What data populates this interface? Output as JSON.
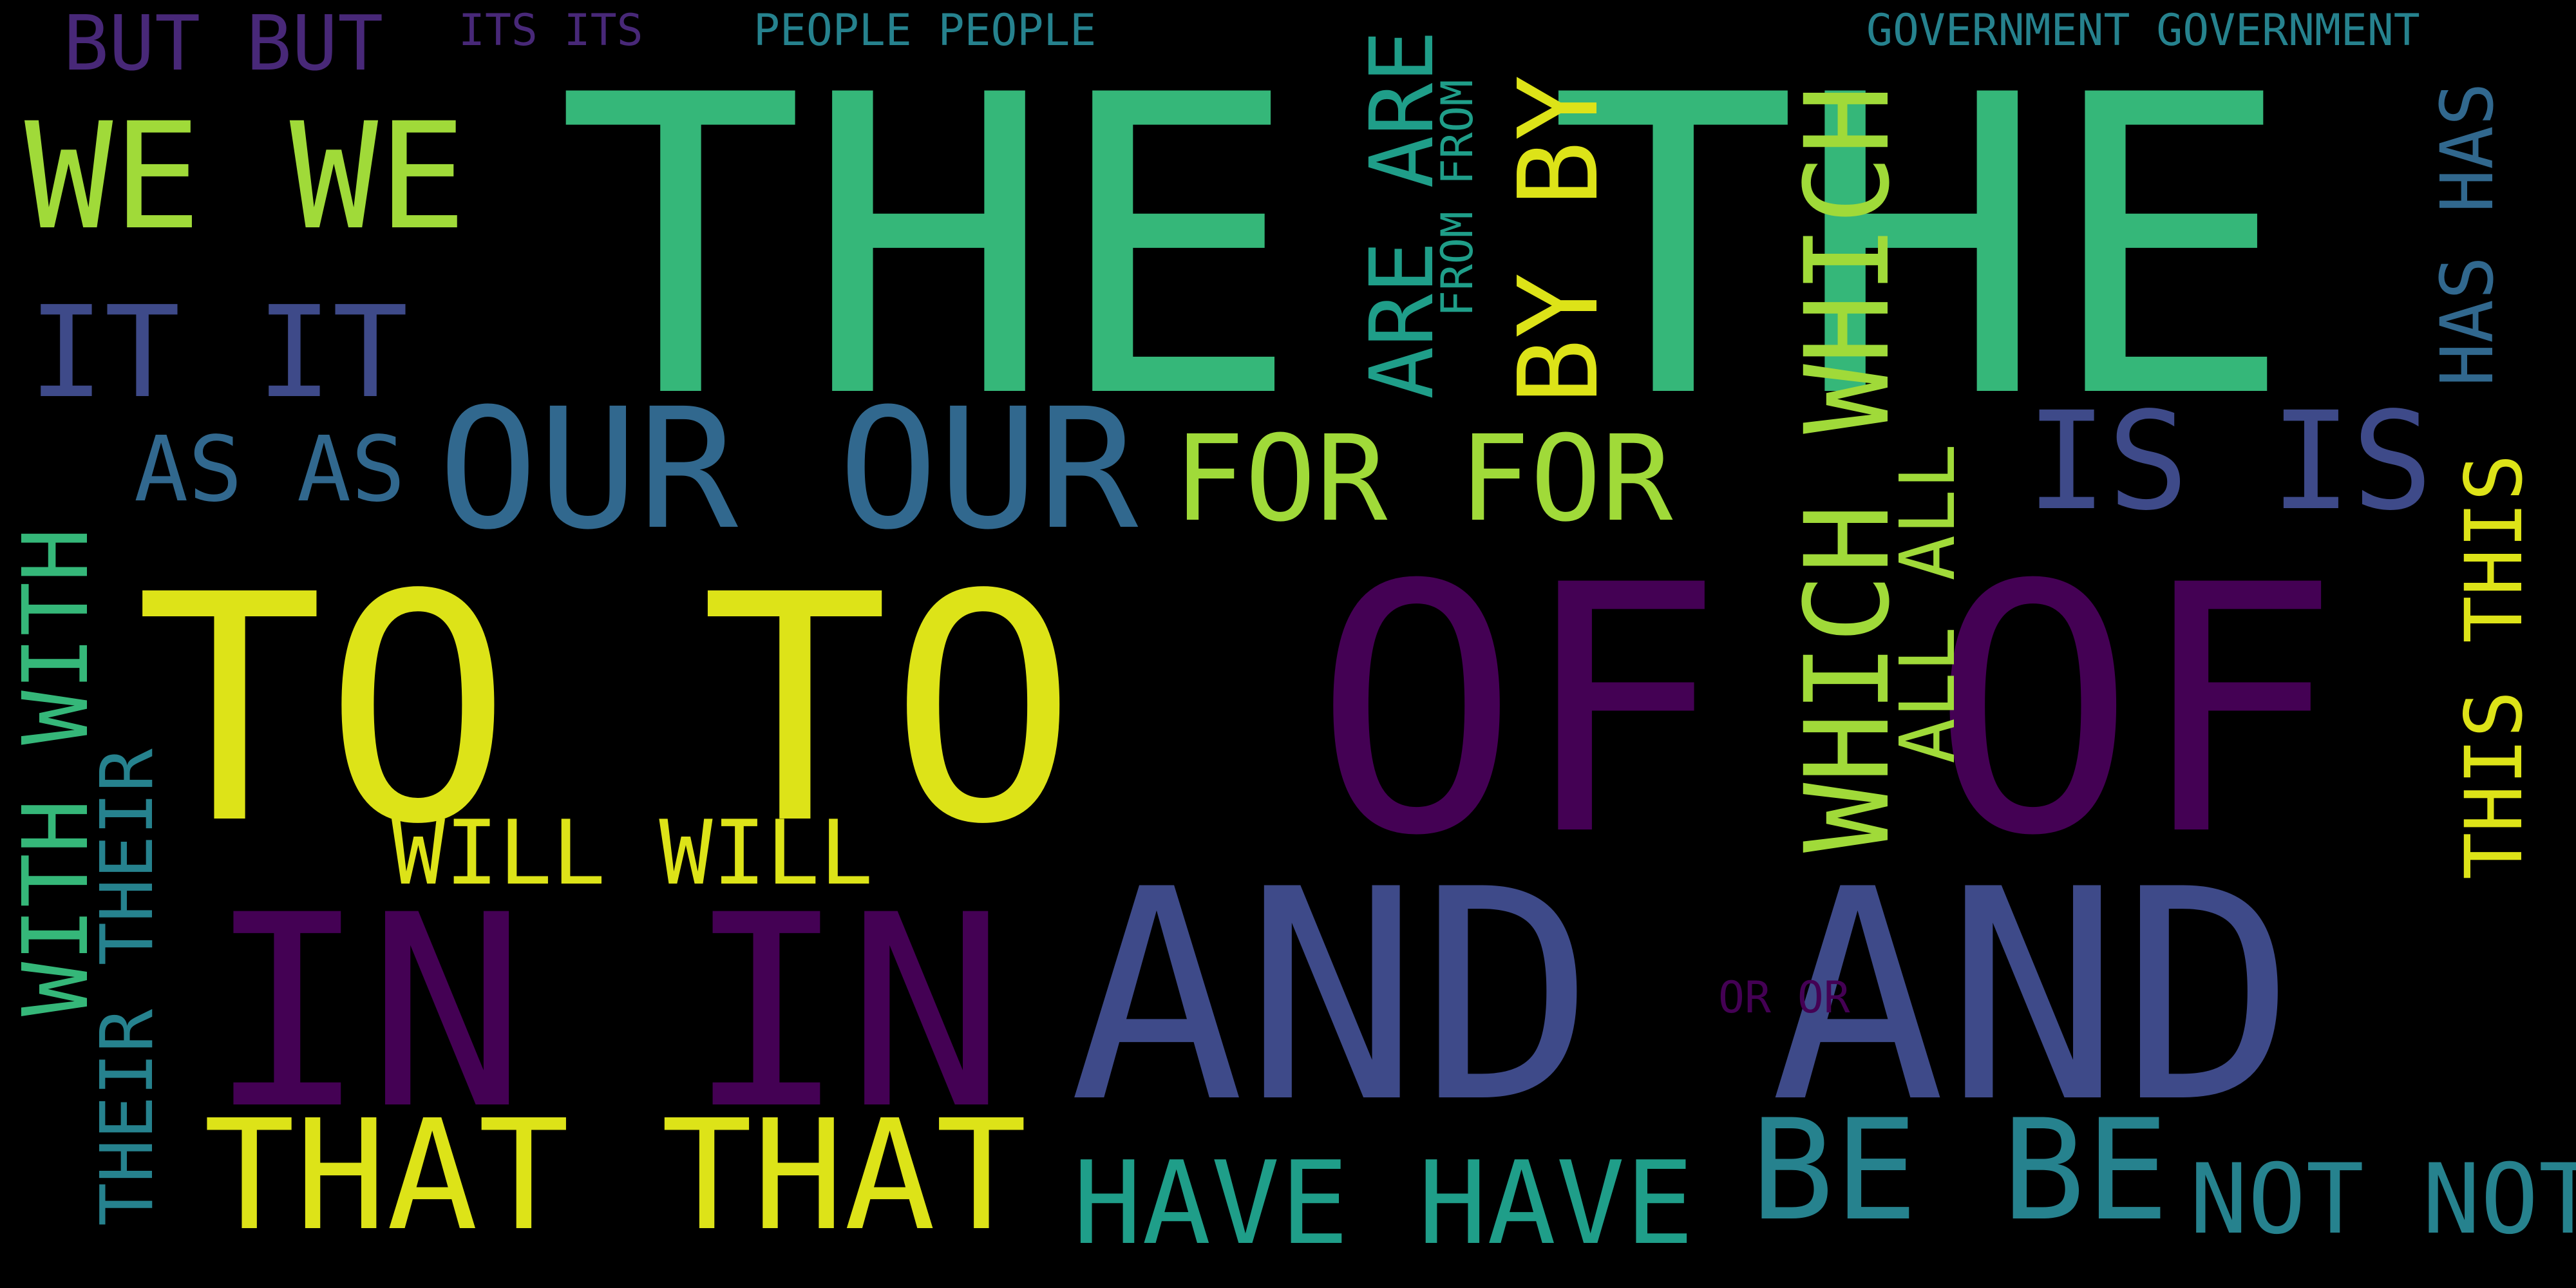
{
  "colors": {
    "background": "#000000",
    "deep_purple": "#440154",
    "purple": "#482878",
    "indigo": "#3e4a89",
    "blue": "#31688e",
    "teal_blue": "#26828e",
    "teal": "#1f9e89",
    "green": "#35b779",
    "lime": "#a0da39",
    "yellow_green": "#c8e020",
    "yellow": "#dde318"
  },
  "words": {
    "but": "BUT BUT",
    "its": "ITS ITS",
    "people": "PEOPLE PEOPLE",
    "government": "GOVERNMENT GOVERNMENT",
    "the": "THE THE",
    "we": "WE WE",
    "are": "ARE ARE",
    "from": "FROM FROM",
    "by": "BY BY",
    "which": "WHICH WHICH",
    "has": "HAS HAS",
    "it": "IT IT",
    "with": "WITH WITH",
    "as": "AS AS",
    "our": "OUR OUR",
    "for": "FOR FOR",
    "is": "IS IS",
    "all": "ALL ALL",
    "this": "THIS THIS",
    "to": "TO TO",
    "of": "OF OF",
    "their": "THEIR THEIR",
    "will": "WILL WILL",
    "in": "IN IN",
    "and": "AND AND",
    "or": "OR OR",
    "that": "THAT THAT",
    "have": "HAVE HAVE",
    "be": "BE BE",
    "not": "NOT NOT"
  }
}
